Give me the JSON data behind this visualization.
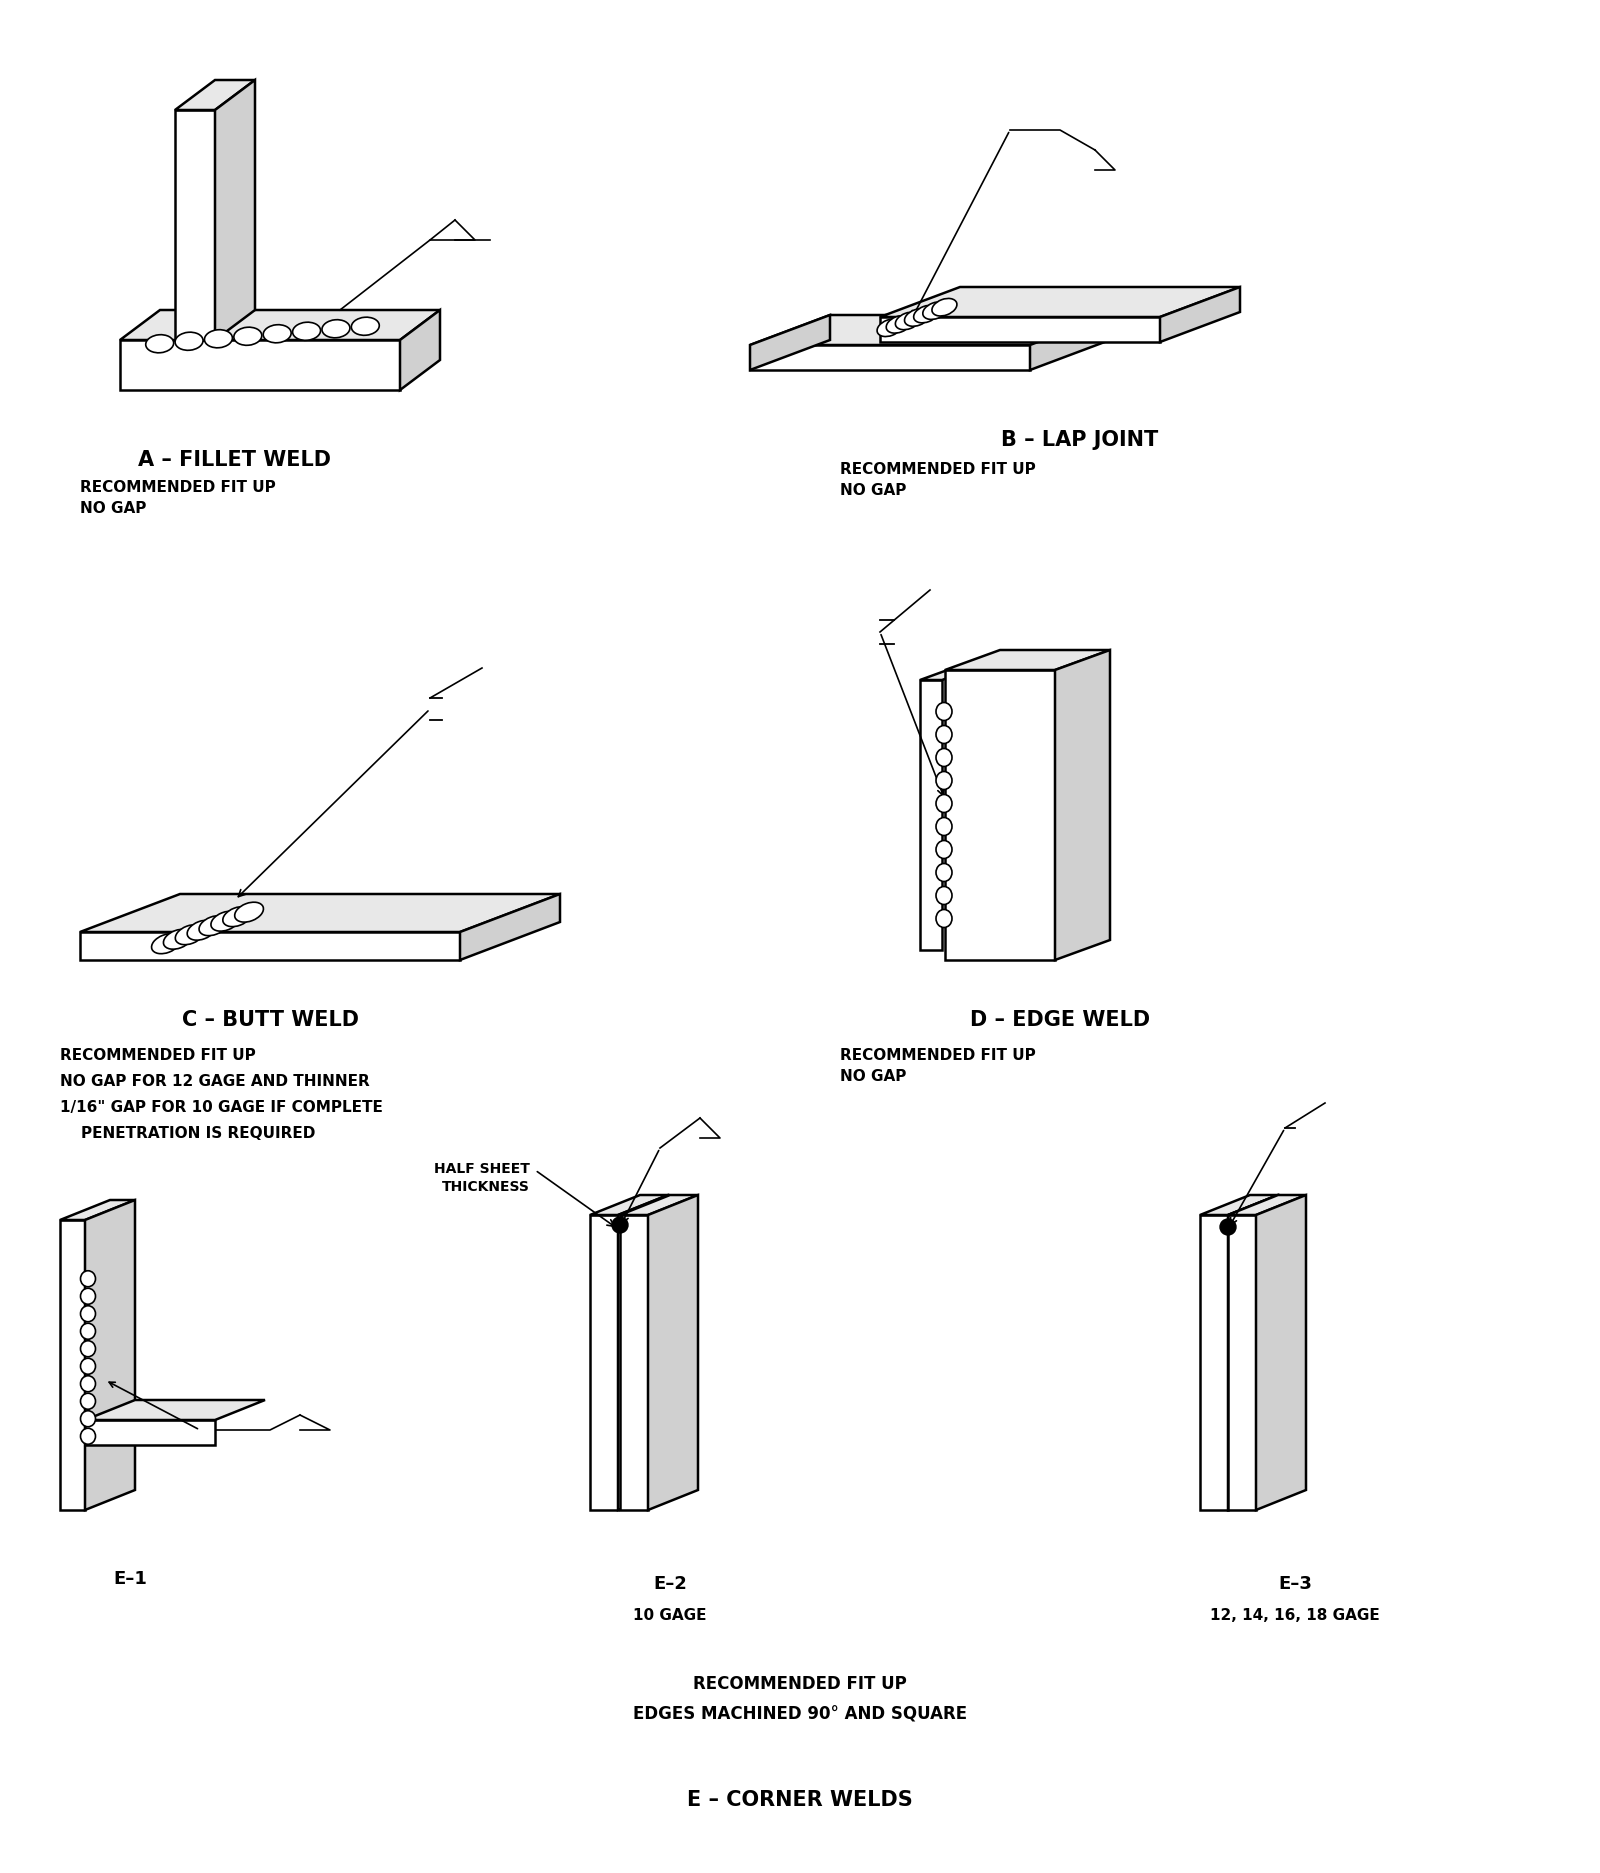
{
  "bg": "#ffffff",
  "lw": 1.8,
  "labels": {
    "A": "A – FILLET WELD",
    "A_sub": "RECOMMENDED FIT UP\nNO GAP",
    "B": "B – LAP JOINT",
    "B_sub": "RECOMMENDED FIT UP\nNO GAP",
    "C": "C – BUTT WELD",
    "C_sub_line1": "RECOMMENDED FIT UP",
    "C_sub_line2": "NO GAP FOR 12 GAGE AND THINNER",
    "C_sub_line3": "1/16\" GAP FOR 10 GAGE IF COMPLETE",
    "C_sub_line4": "    PENETRATION IS REQUIRED",
    "D": "D – EDGE WELD",
    "D_sub": "RECOMMENDED FIT UP\nNO GAP",
    "E1": "E–1",
    "E2": "E–2",
    "E2_sub": "10 GAGE",
    "E3": "E–3",
    "E3_sub": "12, 14, 16, 18 GAGE",
    "E_rec_line1": "RECOMMENDED FIT UP",
    "E_rec_line2": "EDGES MACHINED 90° AND SQUARE",
    "E_group": "E – CORNER WELDS",
    "half_sheet": "HALF SHEET\nTHICKNESS"
  }
}
